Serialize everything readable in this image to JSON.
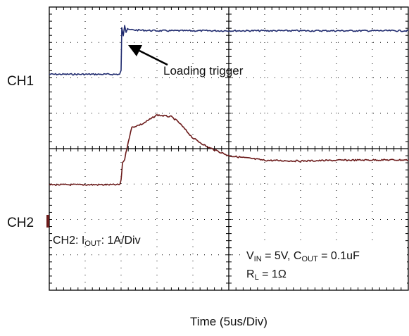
{
  "chart_data": {
    "type": "line",
    "xlabel": "Time (5us/Div)",
    "x_unit": "us",
    "x_per_div": 5,
    "x_divisions": 10,
    "y_divisions": 8,
    "grid": true,
    "series": [
      {
        "name": "CH1",
        "color": "#1f2a6e",
        "x": [
          -20,
          -15,
          -10.2,
          -10,
          -9.9,
          -9.7,
          -9.5,
          -9.3,
          -9.1,
          -8.9,
          -8.6,
          -8,
          -5,
          0,
          5,
          10,
          15,
          20,
          25,
          30
        ],
        "y": [
          2.1,
          2.1,
          2.1,
          2.2,
          3.4,
          3.2,
          3.5,
          3.3,
          3.4,
          3.35,
          3.36,
          3.35,
          3.33,
          3.33,
          3.33,
          3.33,
          3.33,
          3.33,
          3.33,
          3.33
        ]
      },
      {
        "name": "CH2",
        "color": "#6b1a1a",
        "x": [
          -20,
          -15,
          -10.2,
          -10,
          -9.8,
          -9.5,
          -9,
          -8.5,
          -7,
          -5,
          -3,
          -2,
          0,
          2,
          5,
          10,
          15,
          20,
          25,
          30
        ],
        "y": [
          -1.02,
          -1.02,
          -1.02,
          -0.9,
          -0.4,
          -0.3,
          0.2,
          0.6,
          0.7,
          0.95,
          0.9,
          0.75,
          0.3,
          0.05,
          -0.2,
          -0.33,
          -0.35,
          -0.33,
          -0.32,
          -0.32
        ]
      }
    ],
    "annotations": {
      "loading_trigger": "Loading trigger",
      "ch1_marker": "CH1",
      "ch2_marker": "CH2",
      "ch2_scale_prefix": "CH2: I",
      "ch2_scale_sub": "OUT",
      "ch2_scale_suffix": ": 1A/Div",
      "vin_sym": "V",
      "vin_sub": "IN",
      "vin_eq": " = 5V, C",
      "cout_sub": "OUT",
      "cout_eq": " = 0.1uF",
      "rl_sym": "R",
      "rl_sub": "L",
      "rl_eq": " = 1Ω"
    }
  }
}
